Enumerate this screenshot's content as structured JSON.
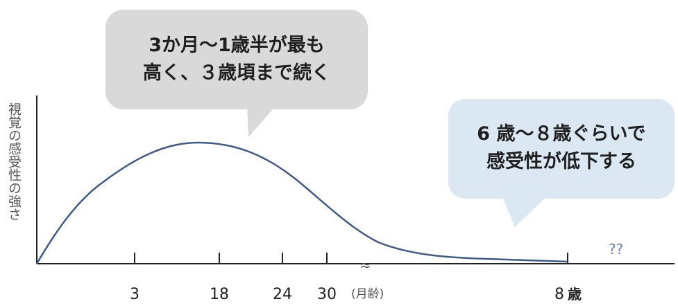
{
  "chart_data": {
    "type": "line",
    "ylabel": "視覚の感受性の強さ",
    "x_ticks": [
      {
        "label": "3",
        "value": 3
      },
      {
        "label": "18",
        "value": 18
      },
      {
        "label": "24",
        "value": 24
      },
      {
        "label": "30",
        "value": 30
      },
      {
        "label": "8",
        "value": "8歳"
      }
    ],
    "x_unit_months": "(月齢)",
    "x_unit_years": "歳",
    "axis_break": "≈",
    "unknown_marker": "??",
    "series": [
      {
        "color": "#3e5a8c",
        "shape": "rises from 0 at birth, peaks between 3 and 18 months, declines through 24 and 30 months, tapers near zero by 8 years"
      }
    ],
    "annotations": [
      {
        "lines": [
          "3か月〜1歳半が最も",
          "高く、３歳頃まで続く"
        ],
        "fill": "#d9d9d9"
      },
      {
        "lines": [
          "6 歳〜８歳ぐらいで",
          "感受性が低下する"
        ],
        "fill": "#dbe8f3"
      }
    ]
  }
}
